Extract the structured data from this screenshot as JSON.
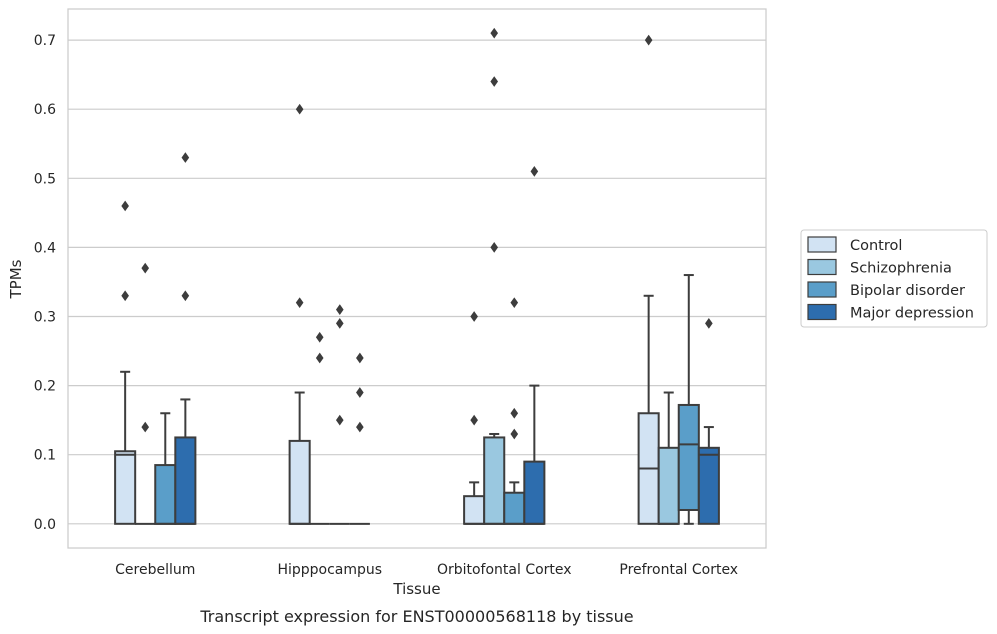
{
  "chart_data": {
    "type": "box",
    "title": "",
    "caption": "Transcript expression for ENST00000568118 by tissue",
    "xlabel": "Tissue",
    "ylabel": "TPMs",
    "ylim": [
      -0.035,
      0.745
    ],
    "yticks": [
      0.0,
      0.1,
      0.2,
      0.3,
      0.4,
      0.5,
      0.6,
      0.7
    ],
    "ytick_labels": [
      "0.0",
      "0.1",
      "0.2",
      "0.3",
      "0.4",
      "0.5",
      "0.6",
      "0.7"
    ],
    "grid": "horizontal",
    "legend_position": "right",
    "categories": [
      "Cerebellum",
      "Hipppocampus",
      "Orbitofontal Cortex",
      "Prefrontal Cortex"
    ],
    "series": [
      {
        "name": "Control",
        "color": "#d2e3f3",
        "boxes": [
          {
            "q1": 0.0,
            "median": 0.1,
            "q3": 0.105,
            "whisker_low": 0.0,
            "whisker_high": 0.22,
            "outliers": [
              0.33,
              0.46
            ]
          },
          {
            "q1": 0.0,
            "median": 0.0,
            "q3": 0.12,
            "whisker_low": 0.0,
            "whisker_high": 0.19,
            "outliers": [
              0.32,
              0.6
            ]
          },
          {
            "q1": 0.0,
            "median": 0.0,
            "q3": 0.04,
            "whisker_low": 0.0,
            "whisker_high": 0.06,
            "outliers": [
              0.15,
              0.3
            ]
          },
          {
            "q1": 0.0,
            "median": 0.08,
            "q3": 0.16,
            "whisker_low": 0.0,
            "whisker_high": 0.33,
            "outliers": [
              0.7
            ]
          }
        ]
      },
      {
        "name": "Schizophrenia",
        "color": "#9ac8e0",
        "boxes": [
          {
            "q1": 0.0,
            "median": 0.0,
            "q3": 0.0,
            "whisker_low": 0.0,
            "whisker_high": 0.0,
            "outliers": [
              0.14,
              0.37
            ]
          },
          {
            "q1": 0.0,
            "median": 0.0,
            "q3": 0.0,
            "whisker_low": 0.0,
            "whisker_high": 0.0,
            "outliers": [
              0.24,
              0.27
            ]
          },
          {
            "q1": 0.0,
            "median": 0.0,
            "q3": 0.125,
            "whisker_low": 0.0,
            "whisker_high": 0.13,
            "outliers": [
              0.4,
              0.64,
              0.71
            ]
          },
          {
            "q1": 0.0,
            "median": 0.0,
            "q3": 0.11,
            "whisker_low": 0.0,
            "whisker_high": 0.19,
            "outliers": []
          }
        ]
      },
      {
        "name": "Bipolar disorder",
        "color": "#5a9ec9",
        "boxes": [
          {
            "q1": 0.0,
            "median": 0.0,
            "q3": 0.085,
            "whisker_low": 0.0,
            "whisker_high": 0.16,
            "outliers": []
          },
          {
            "q1": 0.0,
            "median": 0.0,
            "q3": 0.0,
            "whisker_low": 0.0,
            "whisker_high": 0.0,
            "outliers": [
              0.15,
              0.29,
              0.31
            ]
          },
          {
            "q1": 0.0,
            "median": 0.0,
            "q3": 0.045,
            "whisker_low": 0.0,
            "whisker_high": 0.06,
            "outliers": [
              0.13,
              0.16,
              0.32
            ]
          },
          {
            "q1": 0.02,
            "median": 0.115,
            "q3": 0.172,
            "whisker_low": 0.0,
            "whisker_high": 0.36,
            "outliers": []
          }
        ]
      },
      {
        "name": "Major depression",
        "color": "#2d6dae",
        "boxes": [
          {
            "q1": 0.0,
            "median": 0.0,
            "q3": 0.125,
            "whisker_low": 0.0,
            "whisker_high": 0.18,
            "outliers": [
              0.33,
              0.53
            ]
          },
          {
            "q1": 0.0,
            "median": 0.0,
            "q3": 0.0,
            "whisker_low": 0.0,
            "whisker_high": 0.0,
            "outliers": [
              0.14,
              0.19,
              0.24
            ]
          },
          {
            "q1": 0.0,
            "median": 0.0,
            "q3": 0.09,
            "whisker_low": 0.0,
            "whisker_high": 0.2,
            "outliers": [
              0.51
            ]
          },
          {
            "q1": 0.0,
            "median": 0.1,
            "q3": 0.11,
            "whisker_low": 0.0,
            "whisker_high": 0.14,
            "outliers": [
              0.29
            ]
          }
        ]
      }
    ],
    "colors": {
      "edge": "#3d3d3d",
      "grid": "#cccccc",
      "frame": "#cccccc"
    }
  }
}
